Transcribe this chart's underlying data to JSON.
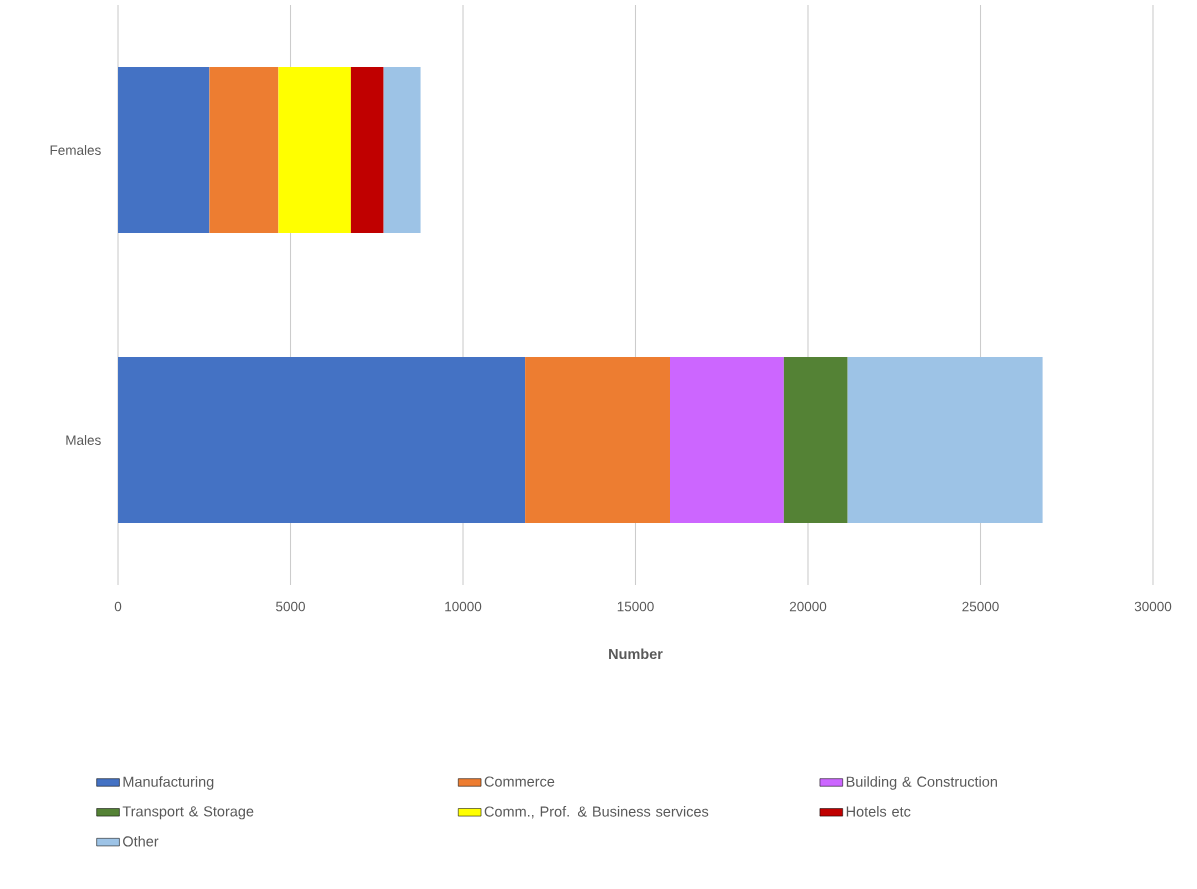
{
  "chart_data": {
    "type": "bar",
    "orientation": "horizontal",
    "stacked": true,
    "xlabel": "Number",
    "categories": [
      "Females",
      "Males"
    ],
    "series": [
      {
        "name": "Manufacturing",
        "color": "#4472c4",
        "values": [
          2650,
          11800
        ]
      },
      {
        "name": "Commerce",
        "color": "#ed7d31",
        "values": [
          2000,
          4200
        ]
      },
      {
        "name": "Building & Construction",
        "color": "#cc66ff",
        "values": [
          null,
          3300
        ]
      },
      {
        "name": "Transport & Storage",
        "color": "#548235",
        "values": [
          null,
          1850
        ]
      },
      {
        "name": "Comm., Prof. & Business services",
        "color": "#ffff00",
        "values": [
          2100,
          null
        ]
      },
      {
        "name": "Hotels etc",
        "color": "#c00000",
        "values": [
          950,
          null
        ]
      },
      {
        "name": "Other",
        "color": "#9dc3e6",
        "values": [
          1070,
          5650
        ]
      }
    ],
    "xlim": [
      0,
      30000
    ],
    "xticks": [
      0,
      5000,
      10000,
      15000,
      20000,
      25000,
      30000
    ],
    "grid": "x",
    "legend": "bottom"
  }
}
